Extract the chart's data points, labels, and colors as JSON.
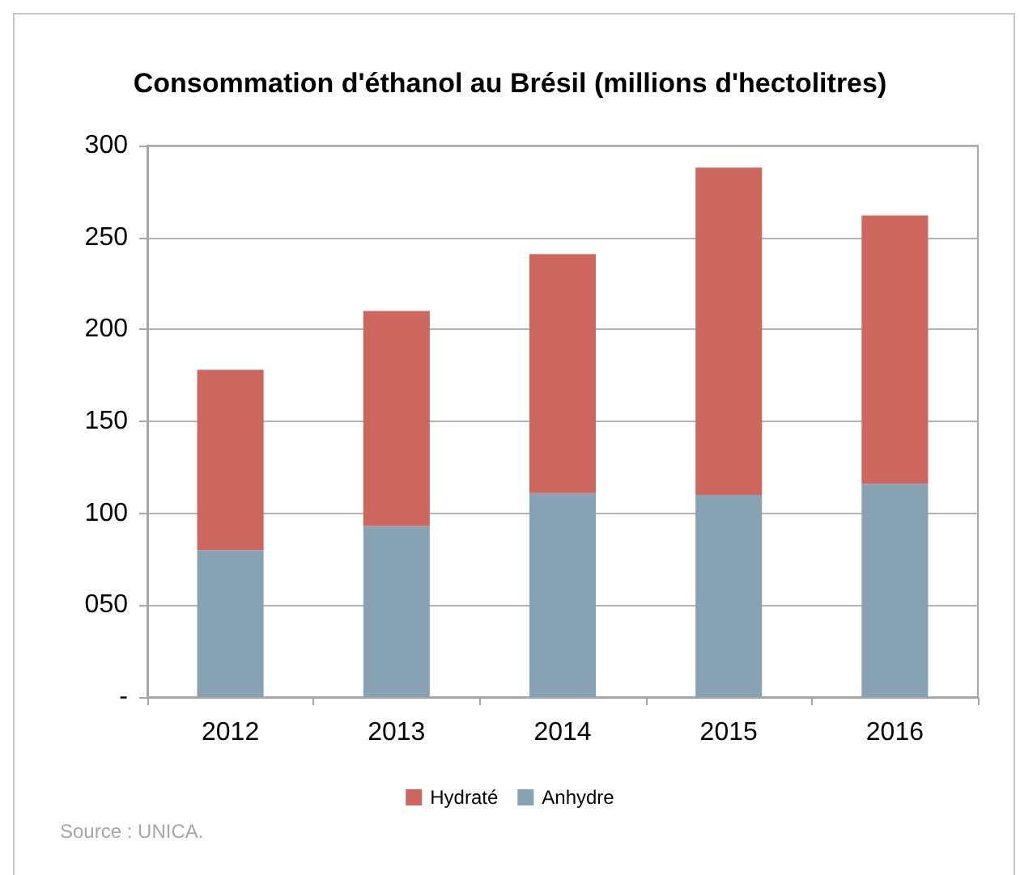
{
  "chart_data": {
    "type": "bar",
    "title": "Consommation d'éthanol au Brésil (millions d'hectolitres)",
    "categories": [
      "2012",
      "2013",
      "2014",
      "2015",
      "2016"
    ],
    "series": [
      {
        "name": "Anhydre",
        "color": "#87a2b3",
        "values": [
          80,
          93,
          111,
          110,
          116
        ]
      },
      {
        "name": "Hydraté",
        "color": "#cd665f",
        "values": [
          98,
          117,
          130,
          178,
          146
        ]
      }
    ],
    "stacked": true,
    "ylim": [
      0,
      300
    ],
    "yticks": [
      {
        "value": 0,
        "label": "-"
      },
      {
        "value": 50,
        "label": "050"
      },
      100,
      150,
      200,
      250,
      300
    ],
    "grid": "y",
    "legend": "bottom",
    "annotations": [
      "Source : UNICA."
    ]
  }
}
